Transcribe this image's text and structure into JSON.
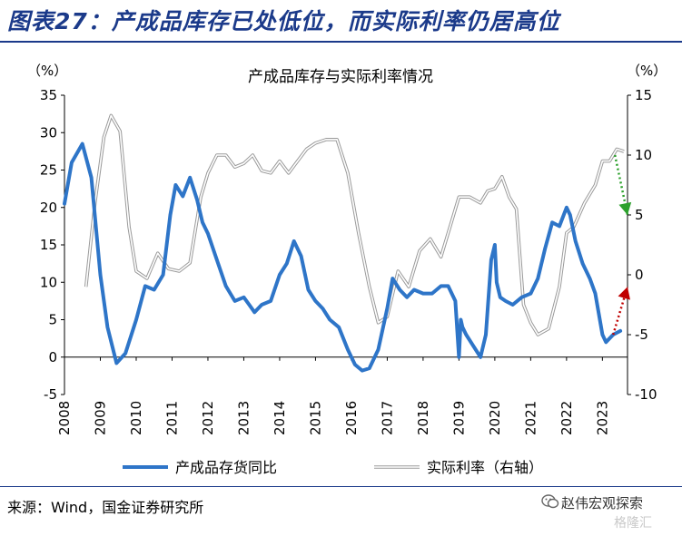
{
  "header": {
    "title": "图表27：产成品库存已处低位，而实际利率仍居高位"
  },
  "footer": {
    "source": "来源：Wind，国金证券研究所"
  },
  "watermark": {
    "line1": "赵伟宏观探索",
    "line2": "格隆汇",
    "icon": "wechat-icon"
  },
  "colors": {
    "title": "#1b3a8a",
    "inventory": "#2e75c8",
    "real_rate": "#bdbdbd",
    "arrow_up": "#c00000",
    "arrow_down": "#2ca02c"
  },
  "chart_data": {
    "type": "line",
    "title": "产成品库存与实际利率情况",
    "left_unit": "（%）",
    "right_unit": "（%）",
    "ylim_left": [
      -5,
      35
    ],
    "ylim_right": [
      -10,
      15
    ],
    "yticks_left": [
      "35",
      "30",
      "25",
      "20",
      "15",
      "10",
      "5",
      "0",
      "-5"
    ],
    "yticks_right": [
      "15",
      "10",
      "5",
      "0",
      "-5",
      "-10"
    ],
    "x_ticks": [
      "2008",
      "2009",
      "2010",
      "2011",
      "2012",
      "2013",
      "2014",
      "2015",
      "2016",
      "2017",
      "2018",
      "2019",
      "2020",
      "2021",
      "2022",
      "2023"
    ],
    "xlim": [
      2008.0,
      2023.7
    ],
    "legend_placement": "bottom",
    "series": [
      {
        "name": "产成品存货同比",
        "axis": "left",
        "x": [
          2008.0,
          2008.2,
          2008.5,
          2008.75,
          2009.0,
          2009.2,
          2009.45,
          2009.7,
          2010.0,
          2010.25,
          2010.5,
          2010.75,
          2010.95,
          2011.1,
          2011.3,
          2011.5,
          2011.7,
          2011.85,
          2012.0,
          2012.25,
          2012.5,
          2012.75,
          2013.0,
          2013.15,
          2013.3,
          2013.5,
          2013.75,
          2014.0,
          2014.2,
          2014.4,
          2014.6,
          2014.8,
          2015.0,
          2015.2,
          2015.4,
          2015.65,
          2015.9,
          2016.1,
          2016.3,
          2016.5,
          2016.75,
          2017.0,
          2017.15,
          2017.35,
          2017.55,
          2017.75,
          2018.0,
          2018.25,
          2018.5,
          2018.7,
          2018.9,
          2019.0,
          2019.05,
          2019.1,
          2019.2,
          2019.4,
          2019.6,
          2019.75,
          2019.9,
          2020.0,
          2020.05,
          2020.15,
          2020.3,
          2020.5,
          2020.75,
          2021.0,
          2021.2,
          2021.4,
          2021.6,
          2021.8,
          2022.0,
          2022.1,
          2022.25,
          2022.45,
          2022.65,
          2022.8,
          2023.0,
          2023.1,
          2023.3,
          2023.5
        ],
        "values": [
          20.5,
          26.0,
          28.5,
          24.0,
          11.0,
          4.0,
          -0.8,
          0.5,
          5.0,
          9.5,
          9.0,
          11.0,
          19.0,
          23.0,
          21.5,
          24.0,
          21.0,
          18.0,
          16.5,
          13.0,
          9.5,
          7.5,
          8.0,
          7.0,
          6.0,
          7.0,
          7.5,
          11.0,
          12.5,
          15.5,
          13.5,
          9.0,
          7.5,
          6.5,
          5.0,
          4.0,
          1.0,
          -1.0,
          -1.8,
          -1.5,
          1.0,
          6.5,
          10.5,
          9.0,
          8.0,
          9.0,
          8.5,
          8.5,
          9.5,
          9.5,
          7.5,
          0.0,
          5.0,
          4.0,
          3.0,
          1.5,
          0.0,
          3.0,
          13.0,
          15.0,
          10.0,
          8.0,
          7.5,
          7.0,
          8.0,
          8.5,
          10.5,
          14.5,
          18.0,
          17.5,
          20.0,
          19.0,
          15.5,
          12.5,
          10.5,
          8.5,
          3.0,
          2.0,
          3.0,
          3.5
        ]
      },
      {
        "name": "实际利率（右轴）",
        "axis": "right",
        "x": [
          2008.6,
          2008.85,
          2009.1,
          2009.3,
          2009.55,
          2009.8,
          2010.0,
          2010.3,
          2010.6,
          2010.9,
          2011.2,
          2011.5,
          2011.8,
          2012.0,
          2012.25,
          2012.5,
          2012.75,
          2013.0,
          2013.25,
          2013.5,
          2013.75,
          2014.0,
          2014.25,
          2014.5,
          2014.75,
          2015.0,
          2015.3,
          2015.6,
          2015.9,
          2016.2,
          2016.5,
          2016.75,
          2017.0,
          2017.3,
          2017.6,
          2017.9,
          2018.2,
          2018.5,
          2018.8,
          2019.0,
          2019.3,
          2019.6,
          2019.8,
          2020.0,
          2020.2,
          2020.4,
          2020.6,
          2020.8,
          2021.0,
          2021.2,
          2021.5,
          2021.8,
          2022.0,
          2022.2,
          2022.5,
          2022.8,
          2023.0,
          2023.2,
          2023.4,
          2023.6
        ],
        "values": [
          -1.0,
          6.0,
          11.5,
          13.3,
          12.0,
          4.0,
          0.3,
          -0.3,
          1.8,
          0.5,
          0.3,
          1.0,
          6.5,
          8.5,
          10.0,
          10.0,
          9.0,
          9.3,
          10.0,
          8.7,
          8.5,
          9.5,
          8.5,
          9.5,
          10.5,
          11.0,
          11.3,
          11.3,
          8.5,
          3.5,
          -1.0,
          -4.0,
          -3.5,
          0.3,
          -1.0,
          2.0,
          3.0,
          1.5,
          4.5,
          6.5,
          6.5,
          6.0,
          7.0,
          7.2,
          8.2,
          6.5,
          5.5,
          -2.5,
          -4.0,
          -5.0,
          -4.5,
          -1.0,
          3.5,
          4.0,
          6.0,
          7.5,
          9.5,
          9.5,
          10.5,
          10.3
        ]
      }
    ],
    "annotations": [
      {
        "kind": "dotted-arrow",
        "color": "red",
        "from": [
          2023.3,
          -5.0
        ],
        "to": [
          2023.7,
          -1.0
        ],
        "axis": "right"
      },
      {
        "kind": "dotted-arrow",
        "color": "green",
        "from": [
          2023.35,
          10.0
        ],
        "to": [
          2023.7,
          5.0
        ],
        "axis": "right"
      }
    ]
  }
}
